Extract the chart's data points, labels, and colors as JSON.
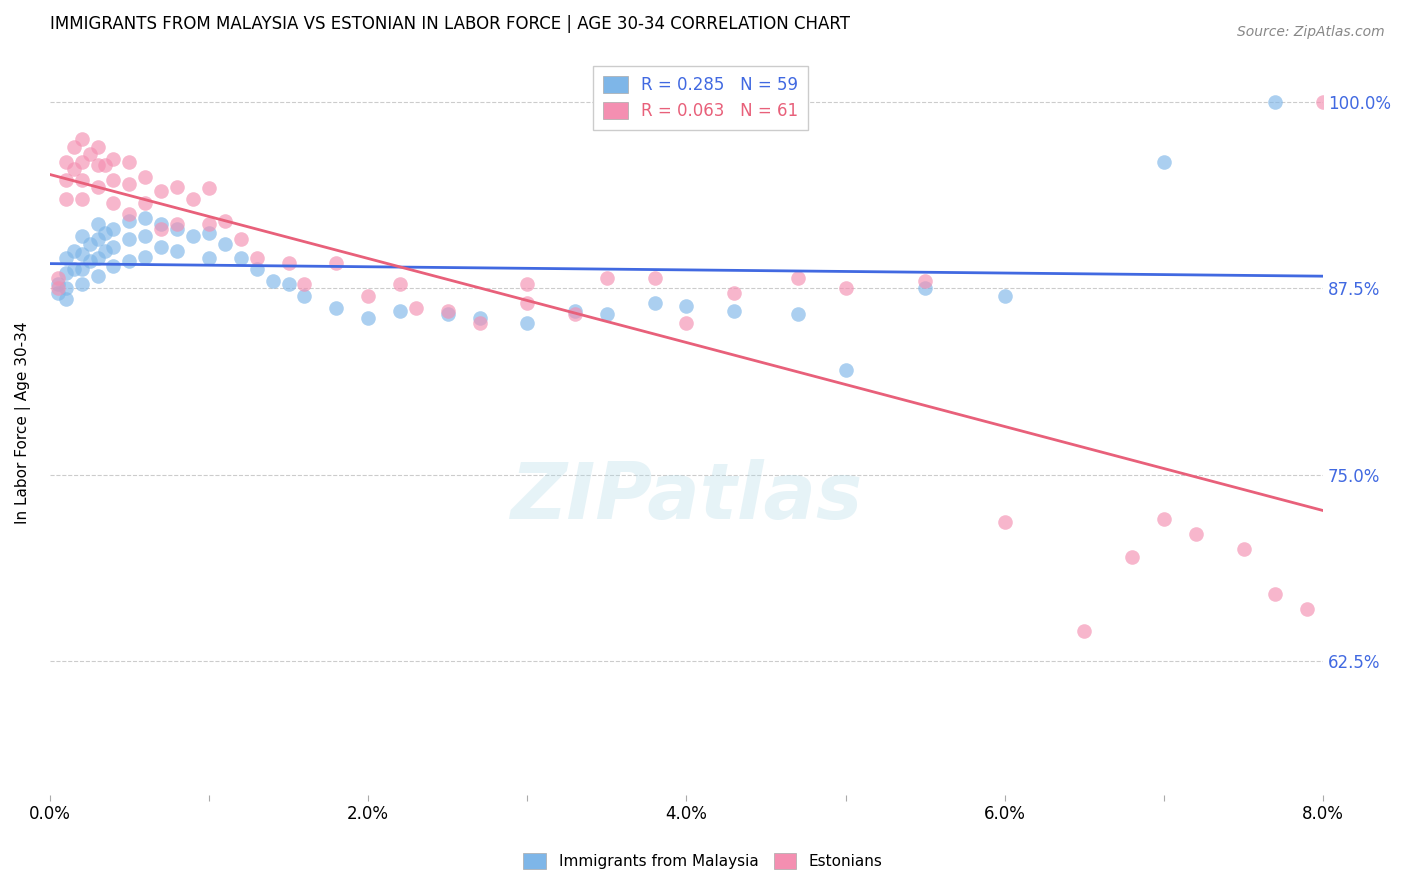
{
  "title": "IMMIGRANTS FROM MALAYSIA VS ESTONIAN IN LABOR FORCE | AGE 30-34 CORRELATION CHART",
  "source": "Source: ZipAtlas.com",
  "ylabel": "In Labor Force | Age 30-34",
  "xlim": [
    0.0,
    0.08
  ],
  "ylim": [
    0.535,
    1.035
  ],
  "yticks": [
    0.625,
    0.75,
    0.875,
    1.0
  ],
  "ytick_labels": [
    "62.5%",
    "75.0%",
    "87.5%",
    "100.0%"
  ],
  "xtick_positions": [
    0.0,
    0.01,
    0.02,
    0.03,
    0.04,
    0.05,
    0.06,
    0.07,
    0.08
  ],
  "xtick_labels": [
    "0.0%",
    "",
    "2.0%",
    "",
    "4.0%",
    "",
    "6.0%",
    "",
    "8.0%"
  ],
  "legend_r1": "R = 0.285",
  "legend_n1": "N = 59",
  "legend_r2": "R = 0.063",
  "legend_n2": "N = 61",
  "malaysia_color": "#7EB6E8",
  "estonian_color": "#F48FB1",
  "trendline_malaysia_color": "#4169E1",
  "trendline_estonian_color": "#E8607A",
  "watermark": "ZIPatlas",
  "malaysia_x": [
    0.0005,
    0.0005,
    0.001,
    0.001,
    0.001,
    0.001,
    0.0015,
    0.0015,
    0.002,
    0.002,
    0.002,
    0.002,
    0.0025,
    0.0025,
    0.003,
    0.003,
    0.003,
    0.003,
    0.0035,
    0.0035,
    0.004,
    0.004,
    0.004,
    0.005,
    0.005,
    0.005,
    0.006,
    0.006,
    0.006,
    0.007,
    0.007,
    0.008,
    0.008,
    0.009,
    0.01,
    0.01,
    0.011,
    0.012,
    0.013,
    0.014,
    0.015,
    0.016,
    0.018,
    0.02,
    0.022,
    0.025,
    0.027,
    0.03,
    0.033,
    0.035,
    0.038,
    0.04,
    0.043,
    0.047,
    0.05,
    0.055,
    0.06,
    0.07,
    0.077
  ],
  "malaysia_y": [
    0.878,
    0.872,
    0.895,
    0.885,
    0.875,
    0.868,
    0.9,
    0.888,
    0.91,
    0.898,
    0.888,
    0.878,
    0.905,
    0.893,
    0.918,
    0.908,
    0.895,
    0.883,
    0.912,
    0.9,
    0.915,
    0.903,
    0.89,
    0.92,
    0.908,
    0.893,
    0.922,
    0.91,
    0.896,
    0.918,
    0.903,
    0.915,
    0.9,
    0.91,
    0.912,
    0.895,
    0.905,
    0.895,
    0.888,
    0.88,
    0.878,
    0.87,
    0.862,
    0.855,
    0.86,
    0.858,
    0.855,
    0.852,
    0.86,
    0.858,
    0.865,
    0.863,
    0.86,
    0.858,
    0.82,
    0.875,
    0.87,
    0.96,
    1.0
  ],
  "estonian_x": [
    0.0005,
    0.0005,
    0.001,
    0.001,
    0.001,
    0.0015,
    0.0015,
    0.002,
    0.002,
    0.002,
    0.002,
    0.0025,
    0.003,
    0.003,
    0.003,
    0.0035,
    0.004,
    0.004,
    0.004,
    0.005,
    0.005,
    0.005,
    0.006,
    0.006,
    0.007,
    0.007,
    0.008,
    0.008,
    0.009,
    0.01,
    0.01,
    0.011,
    0.012,
    0.013,
    0.015,
    0.016,
    0.018,
    0.02,
    0.022,
    0.023,
    0.025,
    0.027,
    0.03,
    0.03,
    0.033,
    0.035,
    0.038,
    0.04,
    0.043,
    0.047,
    0.05,
    0.055,
    0.06,
    0.065,
    0.068,
    0.07,
    0.072,
    0.075,
    0.077,
    0.079,
    0.08
  ],
  "estonian_y": [
    0.882,
    0.875,
    0.96,
    0.948,
    0.935,
    0.97,
    0.955,
    0.975,
    0.96,
    0.948,
    0.935,
    0.965,
    0.97,
    0.958,
    0.943,
    0.958,
    0.962,
    0.948,
    0.932,
    0.96,
    0.945,
    0.925,
    0.95,
    0.932,
    0.94,
    0.915,
    0.943,
    0.918,
    0.935,
    0.942,
    0.918,
    0.92,
    0.908,
    0.895,
    0.892,
    0.878,
    0.892,
    0.87,
    0.878,
    0.862,
    0.86,
    0.852,
    0.878,
    0.865,
    0.858,
    0.882,
    0.882,
    0.852,
    0.872,
    0.882,
    0.875,
    0.88,
    0.718,
    0.645,
    0.695,
    0.72,
    0.71,
    0.7,
    0.67,
    0.66,
    1.0
  ]
}
